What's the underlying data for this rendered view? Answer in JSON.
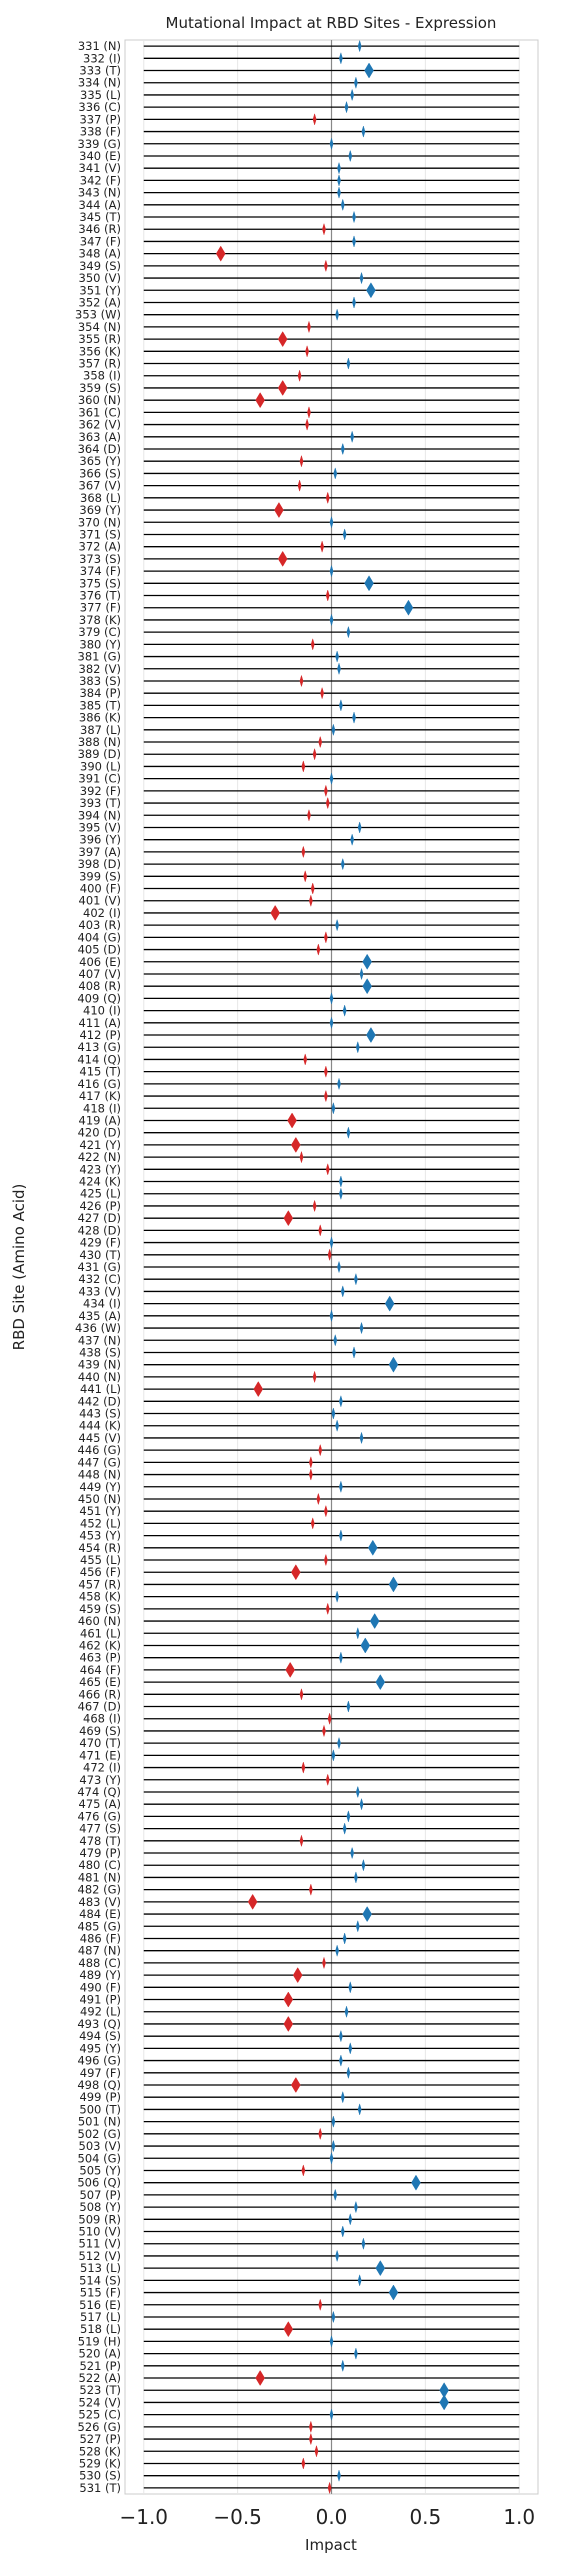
{
  "chart_data": {
    "type": "scatter",
    "title": "Mutational Impact at RBD Sites - Expression",
    "xlabel": "Impact",
    "ylabel": "RBD Site (Amino Acid)",
    "xlim": [
      -1.1,
      1.1
    ],
    "xticks": [
      -1.0,
      -0.5,
      0.0,
      0.5,
      1.0
    ],
    "xtick_labels": [
      "−1.0",
      "−0.5",
      "0.0",
      "0.5",
      "1.0"
    ],
    "grid": true,
    "colors": {
      "positive": "#1f77b4",
      "negative": "#d62728",
      "line": "#000000",
      "zero_line": "#888888",
      "grid": "#e6e6e6"
    },
    "sites": [
      {
        "label": "331 (N)",
        "value": 0.15,
        "large": false
      },
      {
        "label": "332 (I)",
        "value": 0.05,
        "large": false
      },
      {
        "label": "333 (T)",
        "value": 0.2,
        "large": true
      },
      {
        "label": "334 (N)",
        "value": 0.13,
        "large": false
      },
      {
        "label": "335 (L)",
        "value": 0.11,
        "large": false
      },
      {
        "label": "336 (C)",
        "value": 0.08,
        "large": false
      },
      {
        "label": "337 (P)",
        "value": -0.09,
        "large": false
      },
      {
        "label": "338 (F)",
        "value": 0.17,
        "large": false
      },
      {
        "label": "339 (G)",
        "value": 0.0,
        "large": false
      },
      {
        "label": "340 (E)",
        "value": 0.1,
        "large": false
      },
      {
        "label": "341 (V)",
        "value": 0.04,
        "large": false
      },
      {
        "label": "342 (F)",
        "value": 0.04,
        "large": false
      },
      {
        "label": "343 (N)",
        "value": 0.04,
        "large": false
      },
      {
        "label": "344 (A)",
        "value": 0.06,
        "large": false
      },
      {
        "label": "345 (T)",
        "value": 0.12,
        "large": false
      },
      {
        "label": "346 (R)",
        "value": -0.04,
        "large": false
      },
      {
        "label": "347 (F)",
        "value": 0.12,
        "large": false
      },
      {
        "label": "348 (A)",
        "value": -0.59,
        "large": true
      },
      {
        "label": "349 (S)",
        "value": -0.03,
        "large": false
      },
      {
        "label": "350 (V)",
        "value": 0.16,
        "large": false
      },
      {
        "label": "351 (Y)",
        "value": 0.21,
        "large": true
      },
      {
        "label": "352 (A)",
        "value": 0.12,
        "large": false
      },
      {
        "label": "353 (W)",
        "value": 0.03,
        "large": false
      },
      {
        "label": "354 (N)",
        "value": -0.12,
        "large": false
      },
      {
        "label": "355 (R)",
        "value": -0.26,
        "large": true
      },
      {
        "label": "356 (K)",
        "value": -0.13,
        "large": false
      },
      {
        "label": "357 (R)",
        "value": 0.09,
        "large": false
      },
      {
        "label": "358 (I)",
        "value": -0.17,
        "large": false
      },
      {
        "label": "359 (S)",
        "value": -0.26,
        "large": true
      },
      {
        "label": "360 (N)",
        "value": -0.38,
        "large": true
      },
      {
        "label": "361 (C)",
        "value": -0.12,
        "large": false
      },
      {
        "label": "362 (V)",
        "value": -0.13,
        "large": false
      },
      {
        "label": "363 (A)",
        "value": 0.11,
        "large": false
      },
      {
        "label": "364 (D)",
        "value": 0.06,
        "large": false
      },
      {
        "label": "365 (Y)",
        "value": -0.16,
        "large": false
      },
      {
        "label": "366 (S)",
        "value": 0.02,
        "large": false
      },
      {
        "label": "367 (V)",
        "value": -0.17,
        "large": false
      },
      {
        "label": "368 (L)",
        "value": -0.02,
        "large": false
      },
      {
        "label": "369 (Y)",
        "value": -0.28,
        "large": true
      },
      {
        "label": "370 (N)",
        "value": 0.0,
        "large": false
      },
      {
        "label": "371 (S)",
        "value": 0.07,
        "large": false
      },
      {
        "label": "372 (A)",
        "value": -0.05,
        "large": false
      },
      {
        "label": "373 (S)",
        "value": -0.26,
        "large": true
      },
      {
        "label": "374 (F)",
        "value": 0.0,
        "large": false
      },
      {
        "label": "375 (S)",
        "value": 0.2,
        "large": true
      },
      {
        "label": "376 (T)",
        "value": -0.02,
        "large": false
      },
      {
        "label": "377 (F)",
        "value": 0.41,
        "large": true
      },
      {
        "label": "378 (K)",
        "value": 0.0,
        "large": false
      },
      {
        "label": "379 (C)",
        "value": 0.09,
        "large": false
      },
      {
        "label": "380 (Y)",
        "value": -0.1,
        "large": false
      },
      {
        "label": "381 (G)",
        "value": 0.03,
        "large": false
      },
      {
        "label": "382 (V)",
        "value": 0.04,
        "large": false
      },
      {
        "label": "383 (S)",
        "value": -0.16,
        "large": false
      },
      {
        "label": "384 (P)",
        "value": -0.05,
        "large": false
      },
      {
        "label": "385 (T)",
        "value": 0.05,
        "large": false
      },
      {
        "label": "386 (K)",
        "value": 0.12,
        "large": false
      },
      {
        "label": "387 (L)",
        "value": 0.01,
        "large": false
      },
      {
        "label": "388 (N)",
        "value": -0.06,
        "large": false
      },
      {
        "label": "389 (D)",
        "value": -0.09,
        "large": false
      },
      {
        "label": "390 (L)",
        "value": -0.15,
        "large": false
      },
      {
        "label": "391 (C)",
        "value": 0.0,
        "large": false
      },
      {
        "label": "392 (F)",
        "value": -0.03,
        "large": false
      },
      {
        "label": "393 (T)",
        "value": -0.02,
        "large": false
      },
      {
        "label": "394 (N)",
        "value": -0.12,
        "large": false
      },
      {
        "label": "395 (V)",
        "value": 0.15,
        "large": false
      },
      {
        "label": "396 (Y)",
        "value": 0.11,
        "large": false
      },
      {
        "label": "397 (A)",
        "value": -0.15,
        "large": false
      },
      {
        "label": "398 (D)",
        "value": 0.06,
        "large": false
      },
      {
        "label": "399 (S)",
        "value": -0.14,
        "large": false
      },
      {
        "label": "400 (F)",
        "value": -0.1,
        "large": false
      },
      {
        "label": "401 (V)",
        "value": -0.11,
        "large": false
      },
      {
        "label": "402 (I)",
        "value": -0.3,
        "large": true
      },
      {
        "label": "403 (R)",
        "value": 0.03,
        "large": false
      },
      {
        "label": "404 (G)",
        "value": -0.03,
        "large": false
      },
      {
        "label": "405 (D)",
        "value": -0.07,
        "large": false
      },
      {
        "label": "406 (E)",
        "value": 0.19,
        "large": true
      },
      {
        "label": "407 (V)",
        "value": 0.16,
        "large": false
      },
      {
        "label": "408 (R)",
        "value": 0.19,
        "large": true
      },
      {
        "label": "409 (Q)",
        "value": 0.0,
        "large": false
      },
      {
        "label": "410 (I)",
        "value": 0.07,
        "large": false
      },
      {
        "label": "411 (A)",
        "value": 0.0,
        "large": false
      },
      {
        "label": "412 (P)",
        "value": 0.21,
        "large": true
      },
      {
        "label": "413 (G)",
        "value": 0.14,
        "large": false
      },
      {
        "label": "414 (Q)",
        "value": -0.14,
        "large": false
      },
      {
        "label": "415 (T)",
        "value": -0.03,
        "large": false
      },
      {
        "label": "416 (G)",
        "value": 0.04,
        "large": false
      },
      {
        "label": "417 (K)",
        "value": -0.03,
        "large": false
      },
      {
        "label": "418 (I)",
        "value": 0.01,
        "large": false
      },
      {
        "label": "419 (A)",
        "value": -0.21,
        "large": true
      },
      {
        "label": "420 (D)",
        "value": 0.09,
        "large": false
      },
      {
        "label": "421 (Y)",
        "value": -0.19,
        "large": true
      },
      {
        "label": "422 (N)",
        "value": -0.16,
        "large": false
      },
      {
        "label": "423 (Y)",
        "value": -0.02,
        "large": false
      },
      {
        "label": "424 (K)",
        "value": 0.05,
        "large": false
      },
      {
        "label": "425 (L)",
        "value": 0.05,
        "large": false
      },
      {
        "label": "426 (P)",
        "value": -0.09,
        "large": false
      },
      {
        "label": "427 (D)",
        "value": -0.23,
        "large": true
      },
      {
        "label": "428 (D)",
        "value": -0.06,
        "large": false
      },
      {
        "label": "429 (F)",
        "value": 0.0,
        "large": false
      },
      {
        "label": "430 (T)",
        "value": -0.01,
        "large": false
      },
      {
        "label": "431 (G)",
        "value": 0.04,
        "large": false
      },
      {
        "label": "432 (C)",
        "value": 0.13,
        "large": false
      },
      {
        "label": "433 (V)",
        "value": 0.06,
        "large": false
      },
      {
        "label": "434 (I)",
        "value": 0.31,
        "large": true
      },
      {
        "label": "435 (A)",
        "value": 0.0,
        "large": false
      },
      {
        "label": "436 (W)",
        "value": 0.16,
        "large": false
      },
      {
        "label": "437 (N)",
        "value": 0.02,
        "large": false
      },
      {
        "label": "438 (S)",
        "value": 0.12,
        "large": false
      },
      {
        "label": "439 (N)",
        "value": 0.33,
        "large": true
      },
      {
        "label": "440 (N)",
        "value": -0.09,
        "large": false
      },
      {
        "label": "441 (L)",
        "value": -0.39,
        "large": true
      },
      {
        "label": "442 (D)",
        "value": 0.05,
        "large": false
      },
      {
        "label": "443 (S)",
        "value": 0.01,
        "large": false
      },
      {
        "label": "444 (K)",
        "value": 0.03,
        "large": false
      },
      {
        "label": "445 (V)",
        "value": 0.16,
        "large": false
      },
      {
        "label": "446 (G)",
        "value": -0.06,
        "large": false
      },
      {
        "label": "447 (G)",
        "value": -0.11,
        "large": false
      },
      {
        "label": "448 (N)",
        "value": -0.11,
        "large": false
      },
      {
        "label": "449 (Y)",
        "value": 0.05,
        "large": false
      },
      {
        "label": "450 (N)",
        "value": -0.07,
        "large": false
      },
      {
        "label": "451 (Y)",
        "value": -0.03,
        "large": false
      },
      {
        "label": "452 (L)",
        "value": -0.1,
        "large": false
      },
      {
        "label": "453 (Y)",
        "value": 0.05,
        "large": false
      },
      {
        "label": "454 (R)",
        "value": 0.22,
        "large": true
      },
      {
        "label": "455 (L)",
        "value": -0.03,
        "large": false
      },
      {
        "label": "456 (F)",
        "value": -0.19,
        "large": true
      },
      {
        "label": "457 (R)",
        "value": 0.33,
        "large": true
      },
      {
        "label": "458 (K)",
        "value": 0.03,
        "large": false
      },
      {
        "label": "459 (S)",
        "value": -0.02,
        "large": false
      },
      {
        "label": "460 (N)",
        "value": 0.23,
        "large": true
      },
      {
        "label": "461 (L)",
        "value": 0.14,
        "large": false
      },
      {
        "label": "462 (K)",
        "value": 0.18,
        "large": true
      },
      {
        "label": "463 (P)",
        "value": 0.05,
        "large": false
      },
      {
        "label": "464 (F)",
        "value": -0.22,
        "large": true
      },
      {
        "label": "465 (E)",
        "value": 0.26,
        "large": true
      },
      {
        "label": "466 (R)",
        "value": -0.16,
        "large": false
      },
      {
        "label": "467 (D)",
        "value": 0.09,
        "large": false
      },
      {
        "label": "468 (I)",
        "value": -0.01,
        "large": false
      },
      {
        "label": "469 (S)",
        "value": -0.04,
        "large": false
      },
      {
        "label": "470 (T)",
        "value": 0.04,
        "large": false
      },
      {
        "label": "471 (E)",
        "value": 0.01,
        "large": false
      },
      {
        "label": "472 (I)",
        "value": -0.15,
        "large": false
      },
      {
        "label": "473 (Y)",
        "value": -0.02,
        "large": false
      },
      {
        "label": "474 (Q)",
        "value": 0.14,
        "large": false
      },
      {
        "label": "475 (A)",
        "value": 0.16,
        "large": false
      },
      {
        "label": "476 (G)",
        "value": 0.09,
        "large": false
      },
      {
        "label": "477 (S)",
        "value": 0.07,
        "large": false
      },
      {
        "label": "478 (T)",
        "value": -0.16,
        "large": false
      },
      {
        "label": "479 (P)",
        "value": 0.11,
        "large": false
      },
      {
        "label": "480 (C)",
        "value": 0.17,
        "large": false
      },
      {
        "label": "481 (N)",
        "value": 0.13,
        "large": false
      },
      {
        "label": "482 (G)",
        "value": -0.11,
        "large": false
      },
      {
        "label": "483 (V)",
        "value": -0.42,
        "large": true
      },
      {
        "label": "484 (E)",
        "value": 0.19,
        "large": true
      },
      {
        "label": "485 (G)",
        "value": 0.14,
        "large": false
      },
      {
        "label": "486 (F)",
        "value": 0.07,
        "large": false
      },
      {
        "label": "487 (N)",
        "value": 0.03,
        "large": false
      },
      {
        "label": "488 (C)",
        "value": -0.04,
        "large": false
      },
      {
        "label": "489 (Y)",
        "value": -0.18,
        "large": true
      },
      {
        "label": "490 (F)",
        "value": 0.1,
        "large": false
      },
      {
        "label": "491 (P)",
        "value": -0.23,
        "large": true
      },
      {
        "label": "492 (L)",
        "value": 0.08,
        "large": false
      },
      {
        "label": "493 (Q)",
        "value": -0.23,
        "large": true
      },
      {
        "label": "494 (S)",
        "value": 0.05,
        "large": false
      },
      {
        "label": "495 (Y)",
        "value": 0.1,
        "large": false
      },
      {
        "label": "496 (G)",
        "value": 0.05,
        "large": false
      },
      {
        "label": "497 (F)",
        "value": 0.09,
        "large": false
      },
      {
        "label": "498 (Q)",
        "value": -0.19,
        "large": true
      },
      {
        "label": "499 (P)",
        "value": 0.06,
        "large": false
      },
      {
        "label": "500 (T)",
        "value": 0.15,
        "large": false
      },
      {
        "label": "501 (N)",
        "value": 0.01,
        "large": false
      },
      {
        "label": "502 (G)",
        "value": -0.06,
        "large": false
      },
      {
        "label": "503 (V)",
        "value": 0.01,
        "large": false
      },
      {
        "label": "504 (G)",
        "value": 0.0,
        "large": false
      },
      {
        "label": "505 (Y)",
        "value": -0.15,
        "large": false
      },
      {
        "label": "506 (Q)",
        "value": 0.45,
        "large": true
      },
      {
        "label": "507 (P)",
        "value": 0.02,
        "large": false
      },
      {
        "label": "508 (Y)",
        "value": 0.13,
        "large": false
      },
      {
        "label": "509 (R)",
        "value": 0.1,
        "large": false
      },
      {
        "label": "510 (V)",
        "value": 0.06,
        "large": false
      },
      {
        "label": "511 (V)",
        "value": 0.17,
        "large": false
      },
      {
        "label": "512 (V)",
        "value": 0.03,
        "large": false
      },
      {
        "label": "513 (L)",
        "value": 0.26,
        "large": true
      },
      {
        "label": "514 (S)",
        "value": 0.15,
        "large": false
      },
      {
        "label": "515 (F)",
        "value": 0.33,
        "large": true
      },
      {
        "label": "516 (E)",
        "value": -0.06,
        "large": false
      },
      {
        "label": "517 (L)",
        "value": 0.01,
        "large": false
      },
      {
        "label": "518 (L)",
        "value": -0.23,
        "large": true
      },
      {
        "label": "519 (H)",
        "value": 0.0,
        "large": false
      },
      {
        "label": "520 (A)",
        "value": 0.13,
        "large": false
      },
      {
        "label": "521 (P)",
        "value": 0.06,
        "large": false
      },
      {
        "label": "522 (A)",
        "value": -0.38,
        "large": true
      },
      {
        "label": "523 (T)",
        "value": 0.6,
        "large": true
      },
      {
        "label": "524 (V)",
        "value": 0.6,
        "large": true
      },
      {
        "label": "525 (C)",
        "value": 0.0,
        "large": false
      },
      {
        "label": "526 (G)",
        "value": -0.11,
        "large": false
      },
      {
        "label": "527 (P)",
        "value": -0.11,
        "large": false
      },
      {
        "label": "528 (K)",
        "value": -0.08,
        "large": false
      },
      {
        "label": "529 (K)",
        "value": -0.15,
        "large": false
      },
      {
        "label": "530 (S)",
        "value": 0.04,
        "large": false
      },
      {
        "label": "531 (T)",
        "value": -0.01,
        "large": false
      }
    ]
  }
}
